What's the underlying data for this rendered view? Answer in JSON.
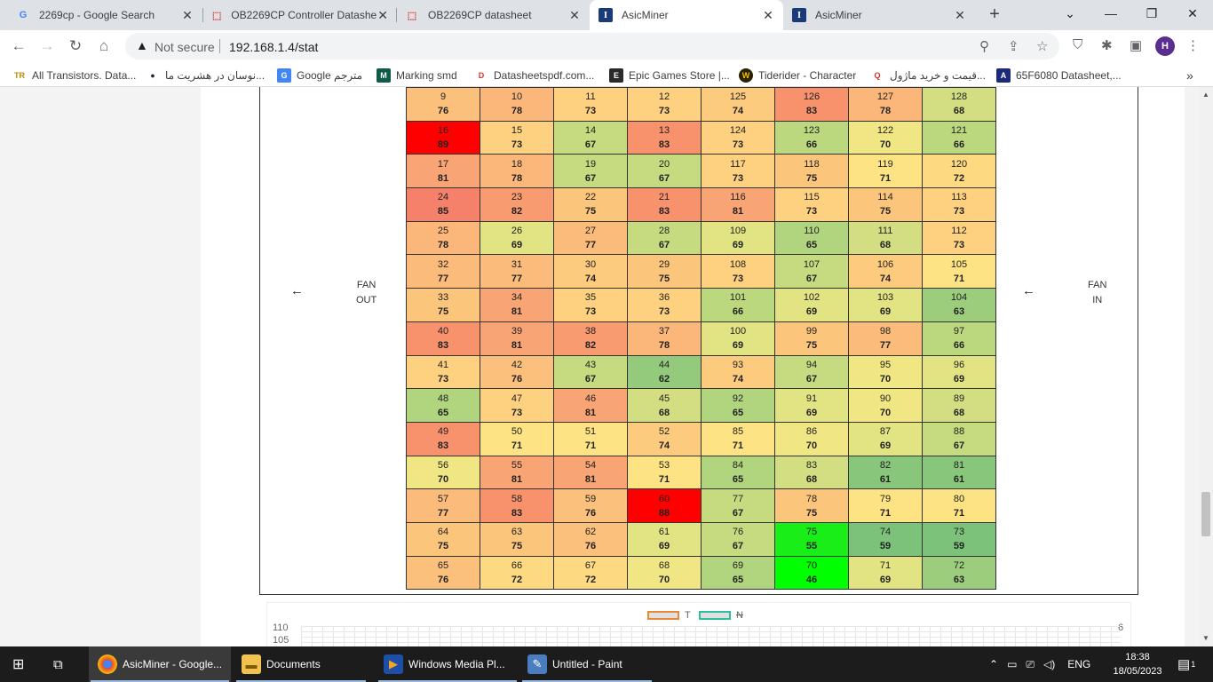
{
  "tabs": [
    {
      "title": "2269cp - Google Search",
      "icon": "google-icon"
    },
    {
      "title": "OB2269CP Controller Datashe",
      "icon": "pdf-icon"
    },
    {
      "title": "OB2269CP datasheet",
      "icon": "pdf-icon"
    },
    {
      "title": "AsicMiner",
      "icon": "asicminer-icon",
      "active": true
    },
    {
      "title": "AsicMiner",
      "icon": "asicminer-icon"
    }
  ],
  "omnibox": {
    "security": "Not secure",
    "url": "192.168.1.4/stat"
  },
  "profile_initial": "H",
  "bookmarks": [
    {
      "label": "All Transistors. Data...",
      "icon": "TR"
    },
    {
      "label": "نوسان در هشریت ما...",
      "icon": "●"
    },
    {
      "label": "Google مترجم",
      "icon": "G"
    },
    {
      "label": "Marking smd",
      "icon": "M"
    },
    {
      "label": "Datasheetspdf.com...",
      "icon": "D"
    },
    {
      "label": "Epic Games Store |...",
      "icon": "E"
    },
    {
      "label": "Tiderider - Character",
      "icon": "W"
    },
    {
      "label": "قیمت و خرید ماژول...",
      "icon": "Q"
    },
    {
      "label": "65F6080 Datasheet,...",
      "icon": "A"
    }
  ],
  "fan_out": {
    "line1": "FAN",
    "line2": "OUT"
  },
  "fan_in": {
    "line1": "FAN",
    "line2": "IN"
  },
  "arrow": "←",
  "chips": [
    [
      {
        "n": "9",
        "t": "76",
        "c": "#fbc07b"
      },
      {
        "n": "10",
        "t": "78",
        "c": "#fbb67a"
      },
      {
        "n": "11",
        "t": "73",
        "c": "#fdd17f"
      },
      {
        "n": "12",
        "t": "73",
        "c": "#fdd17f"
      },
      {
        "n": "125",
        "t": "74",
        "c": "#fccb7e"
      },
      {
        "n": "126",
        "t": "83",
        "c": "#f8926d"
      },
      {
        "n": "127",
        "t": "78",
        "c": "#fbb67a"
      },
      {
        "n": "128",
        "t": "68",
        "c": "#d2de81"
      }
    ],
    [
      {
        "n": "16",
        "t": "89",
        "c": "#ff0000"
      },
      {
        "n": "15",
        "t": "73",
        "c": "#fdd17f"
      },
      {
        "n": "14",
        "t": "67",
        "c": "#c6db80"
      },
      {
        "n": "13",
        "t": "83",
        "c": "#f8926d"
      },
      {
        "n": "124",
        "t": "73",
        "c": "#fdd17f"
      },
      {
        "n": "123",
        "t": "66",
        "c": "#bcd87f"
      },
      {
        "n": "122",
        "t": "70",
        "c": "#f0e784"
      },
      {
        "n": "121",
        "t": "66",
        "c": "#bcd87f"
      }
    ],
    [
      {
        "n": "17",
        "t": "81",
        "c": "#f9a474"
      },
      {
        "n": "18",
        "t": "78",
        "c": "#fbb67a"
      },
      {
        "n": "19",
        "t": "67",
        "c": "#c6db80"
      },
      {
        "n": "20",
        "t": "67",
        "c": "#c6db80"
      },
      {
        "n": "117",
        "t": "73",
        "c": "#fdd17f"
      },
      {
        "n": "118",
        "t": "75",
        "c": "#fcc57c"
      },
      {
        "n": "119",
        "t": "71",
        "c": "#fde383"
      },
      {
        "n": "120",
        "t": "72",
        "c": "#fdda81"
      }
    ],
    [
      {
        "n": "24",
        "t": "85",
        "c": "#f6816b"
      },
      {
        "n": "23",
        "t": "82",
        "c": "#f99b70"
      },
      {
        "n": "22",
        "t": "75",
        "c": "#fcc57c"
      },
      {
        "n": "21",
        "t": "83",
        "c": "#f8926d"
      },
      {
        "n": "116",
        "t": "81",
        "c": "#f9a474"
      },
      {
        "n": "115",
        "t": "73",
        "c": "#fdd17f"
      },
      {
        "n": "114",
        "t": "75",
        "c": "#fcc57c"
      },
      {
        "n": "113",
        "t": "73",
        "c": "#fdd17f"
      }
    ],
    [
      {
        "n": "25",
        "t": "78",
        "c": "#fbb67a"
      },
      {
        "n": "26",
        "t": "69",
        "c": "#e2e383"
      },
      {
        "n": "27",
        "t": "77",
        "c": "#fbbc7b"
      },
      {
        "n": "28",
        "t": "67",
        "c": "#c6db80"
      },
      {
        "n": "109",
        "t": "69",
        "c": "#e2e383"
      },
      {
        "n": "110",
        "t": "65",
        "c": "#b1d47e"
      },
      {
        "n": "111",
        "t": "68",
        "c": "#d2de81"
      },
      {
        "n": "112",
        "t": "73",
        "c": "#fdd17f"
      }
    ],
    [
      {
        "n": "32",
        "t": "77",
        "c": "#fbbc7b"
      },
      {
        "n": "31",
        "t": "77",
        "c": "#fbbc7b"
      },
      {
        "n": "30",
        "t": "74",
        "c": "#fccb7e"
      },
      {
        "n": "29",
        "t": "75",
        "c": "#fcc57c"
      },
      {
        "n": "108",
        "t": "73",
        "c": "#fdd17f"
      },
      {
        "n": "107",
        "t": "67",
        "c": "#c6db80"
      },
      {
        "n": "106",
        "t": "74",
        "c": "#fccb7e"
      },
      {
        "n": "105",
        "t": "71",
        "c": "#fde383"
      }
    ],
    [
      {
        "n": "33",
        "t": "75",
        "c": "#fcc57c"
      },
      {
        "n": "34",
        "t": "81",
        "c": "#f9a474"
      },
      {
        "n": "35",
        "t": "73",
        "c": "#fdd17f"
      },
      {
        "n": "36",
        "t": "73",
        "c": "#fdd17f"
      },
      {
        "n": "101",
        "t": "66",
        "c": "#bcd87f"
      },
      {
        "n": "102",
        "t": "69",
        "c": "#e2e383"
      },
      {
        "n": "103",
        "t": "69",
        "c": "#e2e383"
      },
      {
        "n": "104",
        "t": "63",
        "c": "#9ccd7d"
      }
    ],
    [
      {
        "n": "40",
        "t": "83",
        "c": "#f8926d"
      },
      {
        "n": "39",
        "t": "81",
        "c": "#f9a474"
      },
      {
        "n": "38",
        "t": "82",
        "c": "#f99b70"
      },
      {
        "n": "37",
        "t": "78",
        "c": "#fbb67a"
      },
      {
        "n": "100",
        "t": "69",
        "c": "#e2e383"
      },
      {
        "n": "99",
        "t": "75",
        "c": "#fcc57c"
      },
      {
        "n": "98",
        "t": "77",
        "c": "#fbbc7b"
      },
      {
        "n": "97",
        "t": "66",
        "c": "#bcd87f"
      }
    ],
    [
      {
        "n": "41",
        "t": "73",
        "c": "#fdd17f"
      },
      {
        "n": "42",
        "t": "76",
        "c": "#fbc07b"
      },
      {
        "n": "43",
        "t": "67",
        "c": "#c6db80"
      },
      {
        "n": "44",
        "t": "62",
        "c": "#93ca7c"
      },
      {
        "n": "93",
        "t": "74",
        "c": "#fccb7e"
      },
      {
        "n": "94",
        "t": "67",
        "c": "#c6db80"
      },
      {
        "n": "95",
        "t": "70",
        "c": "#f0e784"
      },
      {
        "n": "96",
        "t": "69",
        "c": "#e2e383"
      }
    ],
    [
      {
        "n": "48",
        "t": "65",
        "c": "#b1d47e"
      },
      {
        "n": "47",
        "t": "73",
        "c": "#fdd17f"
      },
      {
        "n": "46",
        "t": "81",
        "c": "#f9a474"
      },
      {
        "n": "45",
        "t": "68",
        "c": "#d2de81"
      },
      {
        "n": "92",
        "t": "65",
        "c": "#b1d47e"
      },
      {
        "n": "91",
        "t": "69",
        "c": "#e2e383"
      },
      {
        "n": "90",
        "t": "70",
        "c": "#f0e784"
      },
      {
        "n": "89",
        "t": "68",
        "c": "#d2de81"
      }
    ],
    [
      {
        "n": "49",
        "t": "83",
        "c": "#f8926d"
      },
      {
        "n": "50",
        "t": "71",
        "c": "#fde383"
      },
      {
        "n": "51",
        "t": "71",
        "c": "#fde383"
      },
      {
        "n": "52",
        "t": "74",
        "c": "#fccb7e"
      },
      {
        "n": "85",
        "t": "71",
        "c": "#fde383"
      },
      {
        "n": "86",
        "t": "70",
        "c": "#f0e784"
      },
      {
        "n": "87",
        "t": "69",
        "c": "#e2e383"
      },
      {
        "n": "88",
        "t": "67",
        "c": "#c6db80"
      }
    ],
    [
      {
        "n": "56",
        "t": "70",
        "c": "#f0e784"
      },
      {
        "n": "55",
        "t": "81",
        "c": "#f9a474"
      },
      {
        "n": "54",
        "t": "81",
        "c": "#f9a474"
      },
      {
        "n": "53",
        "t": "71",
        "c": "#fde383"
      },
      {
        "n": "84",
        "t": "65",
        "c": "#b1d47e"
      },
      {
        "n": "83",
        "t": "68",
        "c": "#d2de81"
      },
      {
        "n": "82",
        "t": "61",
        "c": "#88c67b"
      },
      {
        "n": "81",
        "t": "61",
        "c": "#88c67b"
      }
    ],
    [
      {
        "n": "57",
        "t": "77",
        "c": "#fbbc7b"
      },
      {
        "n": "58",
        "t": "83",
        "c": "#f8926d"
      },
      {
        "n": "59",
        "t": "76",
        "c": "#fbc07b"
      },
      {
        "n": "60",
        "t": "88",
        "c": "#ff0000"
      },
      {
        "n": "77",
        "t": "67",
        "c": "#c6db80"
      },
      {
        "n": "78",
        "t": "75",
        "c": "#fcc57c"
      },
      {
        "n": "79",
        "t": "71",
        "c": "#fde383"
      },
      {
        "n": "80",
        "t": "71",
        "c": "#fde383"
      }
    ],
    [
      {
        "n": "64",
        "t": "75",
        "c": "#fcc57c"
      },
      {
        "n": "63",
        "t": "75",
        "c": "#fcc57c"
      },
      {
        "n": "62",
        "t": "76",
        "c": "#fbc07b"
      },
      {
        "n": "61",
        "t": "69",
        "c": "#e2e383"
      },
      {
        "n": "76",
        "t": "67",
        "c": "#c6db80"
      },
      {
        "n": "75",
        "t": "55",
        "c": "#19ee19"
      },
      {
        "n": "74",
        "t": "59",
        "c": "#7cc27a"
      },
      {
        "n": "73",
        "t": "59",
        "c": "#7cc27a"
      }
    ],
    [
      {
        "n": "65",
        "t": "76",
        "c": "#fbc07b"
      },
      {
        "n": "66",
        "t": "72",
        "c": "#fdda81"
      },
      {
        "n": "67",
        "t": "72",
        "c": "#fdda81"
      },
      {
        "n": "68",
        "t": "70",
        "c": "#f0e784"
      },
      {
        "n": "69",
        "t": "65",
        "c": "#b1d47e"
      },
      {
        "n": "70",
        "t": "46",
        "c": "#00ff00"
      },
      {
        "n": "71",
        "t": "69",
        "c": "#e2e383"
      },
      {
        "n": "72",
        "t": "63",
        "c": "#9ccd7d"
      }
    ]
  ],
  "chart": {
    "legend_t": "T",
    "legend_n": "N",
    "y_left_top": "110",
    "y_left_second": "105",
    "y_right_top": "6",
    "t_color": "#e8893a",
    "n_color": "#2fbf9f"
  },
  "taskbar": {
    "items": [
      {
        "label": "AsicMiner - Google...",
        "icon": "chrome-icon",
        "active": true
      },
      {
        "label": "Documents",
        "icon": "folder-icon"
      },
      {
        "label": "Windows Media Pl...",
        "icon": "media-player-icon"
      },
      {
        "label": "Untitled - Paint",
        "icon": "paint-icon"
      }
    ],
    "lang": "ENG",
    "time": "18:38",
    "date": "18/05/2023",
    "notif_count": "1"
  }
}
